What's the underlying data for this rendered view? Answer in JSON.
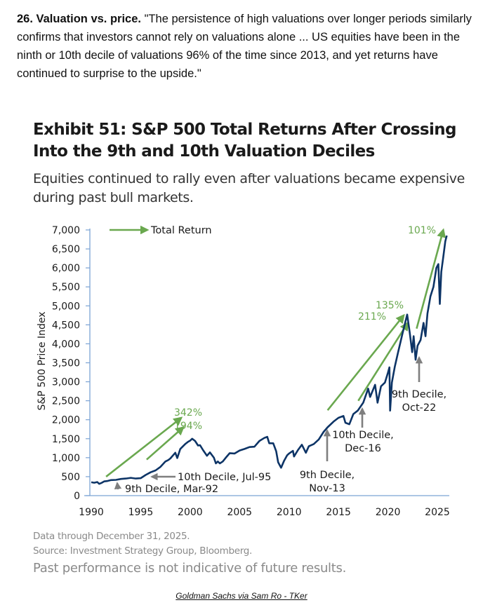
{
  "intro": {
    "heading": "26. Valuation vs. price.",
    "quote": " \"The persistence of high valuations over longer periods similarly confirms that investors cannot rely on valuations alone ... US equities have been in the ninth or 10th decile of valuations 96% of the time since 2013, and yet returns have continued to surprise to the upside.\""
  },
  "exhibit": {
    "title": "Exhibit 51: S&P 500 Total Returns After Crossing Into the 9th and 10th Valuation Deciles",
    "subtitle": "Equities continued to rally even after valuations became expensive during past bull markets."
  },
  "notes": {
    "data_through": "Data through December 31, 2025.",
    "source": "Source: Investment Strategy Group, Bloomberg.",
    "disclaimer": "Past performance is not indicative of future results."
  },
  "credit": {
    "text": "Goldman Sachs via Sam Ro - TKer"
  },
  "colors": {
    "line": "#0d3466",
    "axis": "#7ba3d4",
    "green": "#6aa84f",
    "gray_arrow": "#7f7f7f"
  },
  "chart_data": {
    "type": "line",
    "title": "Exhibit 51: S&P 500 Total Returns After Crossing Into the 9th and 10th Valuation Deciles",
    "xlabel": "",
    "ylabel": "S&P 500 Price Index",
    "xlim": [
      1990,
      2025.9
    ],
    "ylim": [
      0,
      7000
    ],
    "x_ticks": [
      1990,
      1995,
      2000,
      2005,
      2010,
      2015,
      2020,
      2025
    ],
    "y_ticks": [
      0,
      500,
      1000,
      1500,
      2000,
      2500,
      3000,
      3500,
      4000,
      4500,
      5000,
      5500,
      6000,
      6500,
      7000
    ],
    "y_tick_labels": [
      "0",
      "500",
      "1,000",
      "1,500",
      "2,000",
      "2,500",
      "3,000",
      "3,500",
      "4,000",
      "4,500",
      "5,000",
      "5,500",
      "6,000",
      "6,500",
      "7,000"
    ],
    "grid": false,
    "legend": {
      "label": "Total Return",
      "placement": "top-left"
    },
    "series": [
      {
        "name": "S&P 500 Price Index",
        "points": [
          [
            1990.0,
            353
          ],
          [
            1990.3,
            340
          ],
          [
            1990.6,
            358
          ],
          [
            1990.8,
            310
          ],
          [
            1991.0,
            330
          ],
          [
            1991.3,
            375
          ],
          [
            1991.6,
            385
          ],
          [
            1992.0,
            410
          ],
          [
            1992.5,
            415
          ],
          [
            1993.0,
            440
          ],
          [
            1993.5,
            450
          ],
          [
            1994.0,
            470
          ],
          [
            1994.5,
            450
          ],
          [
            1995.0,
            460
          ],
          [
            1995.5,
            545
          ],
          [
            1996.0,
            615
          ],
          [
            1996.5,
            665
          ],
          [
            1997.0,
            760
          ],
          [
            1997.5,
            900
          ],
          [
            1997.8,
            940
          ],
          [
            1998.0,
            980
          ],
          [
            1998.5,
            1130
          ],
          [
            1998.7,
            990
          ],
          [
            1999.0,
            1230
          ],
          [
            1999.5,
            1360
          ],
          [
            1999.8,
            1420
          ],
          [
            2000.0,
            1450
          ],
          [
            2000.2,
            1500
          ],
          [
            2000.5,
            1440
          ],
          [
            2000.8,
            1320
          ],
          [
            2001.0,
            1330
          ],
          [
            2001.3,
            1200
          ],
          [
            2001.7,
            1050
          ],
          [
            2002.0,
            1140
          ],
          [
            2002.4,
            1000
          ],
          [
            2002.6,
            850
          ],
          [
            2002.8,
            900
          ],
          [
            2003.0,
            850
          ],
          [
            2003.3,
            900
          ],
          [
            2003.6,
            1000
          ],
          [
            2004.0,
            1120
          ],
          [
            2004.5,
            1110
          ],
          [
            2005.0,
            1190
          ],
          [
            2005.5,
            1230
          ],
          [
            2006.0,
            1280
          ],
          [
            2006.5,
            1290
          ],
          [
            2007.0,
            1440
          ],
          [
            2007.5,
            1520
          ],
          [
            2007.8,
            1550
          ],
          [
            2008.0,
            1380
          ],
          [
            2008.4,
            1380
          ],
          [
            2008.7,
            1170
          ],
          [
            2008.9,
            880
          ],
          [
            2009.2,
            735
          ],
          [
            2009.5,
            920
          ],
          [
            2009.8,
            1060
          ],
          [
            2010.0,
            1110
          ],
          [
            2010.4,
            1180
          ],
          [
            2010.5,
            1030
          ],
          [
            2010.9,
            1200
          ],
          [
            2011.3,
            1340
          ],
          [
            2011.7,
            1130
          ],
          [
            2012.0,
            1300
          ],
          [
            2012.5,
            1360
          ],
          [
            2013.0,
            1480
          ],
          [
            2013.5,
            1680
          ],
          [
            2013.9,
            1800
          ],
          [
            2014.5,
            1950
          ],
          [
            2015.0,
            2050
          ],
          [
            2015.5,
            2100
          ],
          [
            2015.7,
            1920
          ],
          [
            2016.1,
            1880
          ],
          [
            2016.5,
            2150
          ],
          [
            2016.95,
            2240
          ],
          [
            2017.5,
            2450
          ],
          [
            2018.0,
            2820
          ],
          [
            2018.2,
            2600
          ],
          [
            2018.7,
            2920
          ],
          [
            2018.95,
            2450
          ],
          [
            2019.3,
            2880
          ],
          [
            2019.7,
            2980
          ],
          [
            2020.0,
            3240
          ],
          [
            2020.15,
            3380
          ],
          [
            2020.22,
            2240
          ],
          [
            2020.4,
            2980
          ],
          [
            2020.7,
            3400
          ],
          [
            2021.0,
            3750
          ],
          [
            2021.5,
            4300
          ],
          [
            2021.95,
            4770
          ],
          [
            2022.2,
            4300
          ],
          [
            2022.45,
            3780
          ],
          [
            2022.6,
            4200
          ],
          [
            2022.8,
            3580
          ],
          [
            2023.0,
            3950
          ],
          [
            2023.3,
            4100
          ],
          [
            2023.6,
            4550
          ],
          [
            2023.8,
            4200
          ],
          [
            2024.0,
            4800
          ],
          [
            2024.3,
            5250
          ],
          [
            2024.6,
            5500
          ],
          [
            2024.9,
            6000
          ],
          [
            2025.1,
            6100
          ],
          [
            2025.25,
            5050
          ],
          [
            2025.4,
            5900
          ],
          [
            2025.6,
            6300
          ],
          [
            2025.8,
            6700
          ],
          [
            2025.95,
            6850
          ]
        ]
      }
    ],
    "total_return_arrows": [
      {
        "label": "342%",
        "from": [
          1991.5,
          500
        ],
        "to": [
          1999.1,
          2050
        ]
      },
      {
        "label": "194%",
        "from": [
          1995.6,
          950
        ],
        "to": [
          1999.3,
          1800
        ]
      },
      {
        "label": "211%",
        "from": [
          2013.9,
          2250
        ],
        "to": [
          2021.6,
          4750
        ]
      },
      {
        "label": "135%",
        "from": [
          2017.0,
          2500
        ],
        "to": [
          2022.0,
          4550
        ]
      },
      {
        "label": "101%",
        "from": [
          2022.9,
          4400
        ],
        "to": [
          2025.6,
          7000
        ]
      }
    ],
    "decile_annotations": [
      {
        "line1": "9th Decile, Mar-92",
        "line2": "",
        "point": [
          1992.2,
          420
        ]
      },
      {
        "line1": "10th Decile, Jul-95",
        "line2": "",
        "point": [
          1995.55,
          560
        ]
      },
      {
        "line1": "9th Decile,",
        "line2": "Nov-13",
        "point": [
          2013.85,
          1780
        ]
      },
      {
        "line1": "10th Decile,",
        "line2": "Dec-16",
        "point": [
          2016.95,
          2300
        ]
      },
      {
        "line1": "9th Decile,",
        "line2": "Oct-22",
        "point": [
          2022.8,
          3680
        ]
      }
    ]
  }
}
